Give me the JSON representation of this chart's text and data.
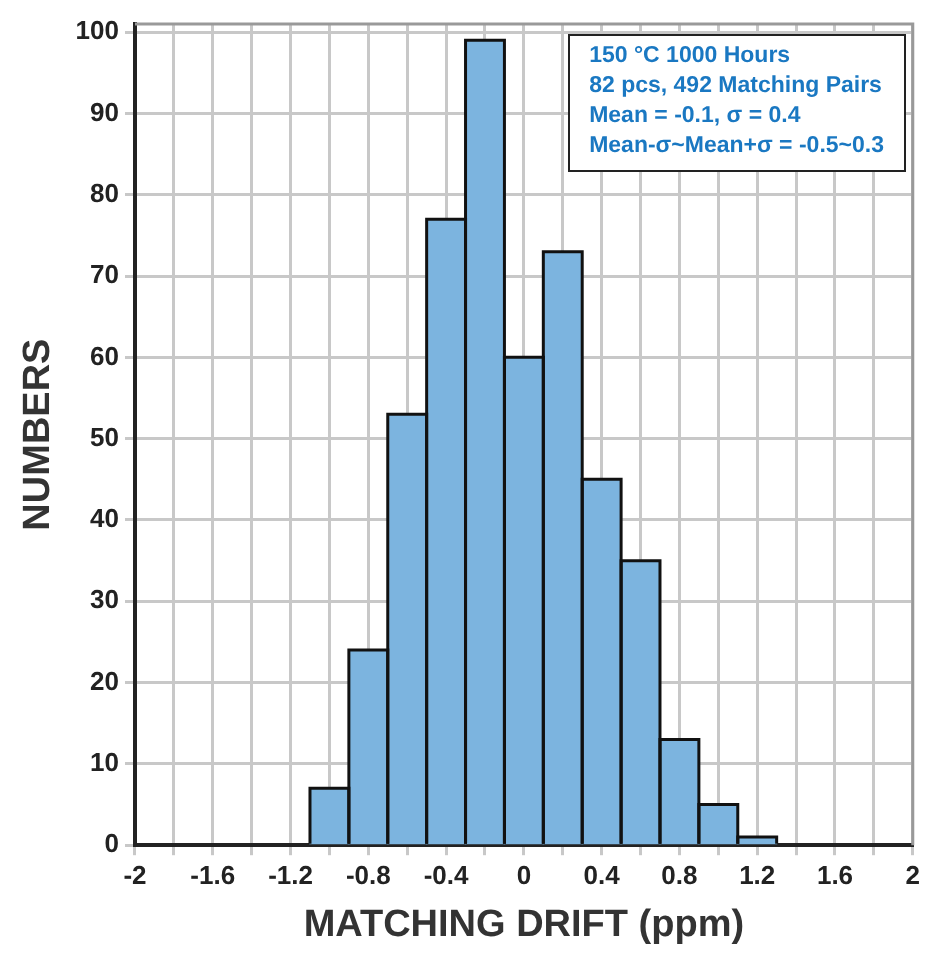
{
  "chart_data": {
    "type": "histogram",
    "xlabel": "MATCHING DRIFT (ppm)",
    "ylabel": "NUMBERS",
    "bins": [
      -1.1,
      -0.9,
      -0.7,
      -0.5,
      -0.3,
      -0.1,
      0.1,
      0.3,
      0.5,
      0.7,
      0.9,
      1.1,
      1.3
    ],
    "values": [
      7,
      24,
      53,
      77,
      99,
      60,
      73,
      45,
      35,
      13,
      5,
      1
    ],
    "color": "#7cb4df",
    "xlim": [
      -2,
      2
    ],
    "xticks": [
      -2,
      {
        "value": -1.8,
        "label": null
      },
      -1.6,
      {
        "value": -1.4,
        "label": null
      },
      -1.2,
      {
        "value": -1,
        "label": null
      },
      -0.8,
      {
        "value": -0.6,
        "label": null
      },
      -0.4,
      {
        "value": -0.2,
        "label": null
      },
      0,
      {
        "value": 0.2,
        "label": null
      },
      0.4,
      {
        "value": 0.6,
        "label": null
      },
      0.8,
      {
        "value": 1,
        "label": null
      },
      1.2,
      {
        "value": 1.4,
        "label": null
      },
      1.6,
      {
        "value": 1.8,
        "label": null
      },
      2
    ],
    "ylim": [
      0,
      101
    ],
    "yticks": [
      0,
      10,
      20,
      30,
      40,
      50,
      60,
      70,
      80,
      90,
      100
    ],
    "grid": true,
    "annotations": [
      "150 °C 1000 Hours",
      "82 pcs, 492 Matching Pairs",
      "Mean = -0.1, σ = 0.4",
      "Mean-σ~Mean+σ = -0.5~0.3"
    ]
  }
}
